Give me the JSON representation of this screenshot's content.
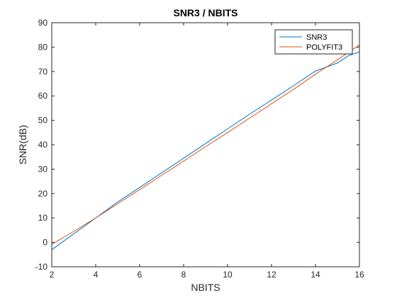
{
  "chart_data": {
    "type": "line",
    "title": "SNR3 / NBITS",
    "xlabel": "NBITS",
    "ylabel": "SNR(dB)",
    "xlim": [
      2,
      16
    ],
    "ylim": [
      -10,
      90
    ],
    "xticks": [
      2,
      4,
      6,
      8,
      10,
      12,
      14,
      16
    ],
    "yticks": [
      -10,
      0,
      10,
      20,
      30,
      40,
      50,
      60,
      70,
      80,
      90
    ],
    "grid": false,
    "legend_position": "top-right",
    "series": [
      {
        "name": "SNR3",
        "color": "#0072BD",
        "x": [
          2,
          3,
          4,
          5,
          6,
          7,
          8,
          9,
          10,
          11,
          12,
          13,
          14,
          15,
          15.5,
          16
        ],
        "y": [
          -3,
          3.5,
          10,
          16.5,
          22.5,
          28.5,
          34.5,
          40.5,
          46.5,
          52.5,
          58.3,
          64.2,
          70.2,
          73.5,
          76.5,
          78
        ]
      },
      {
        "name": "POLYFIT3",
        "color": "#D95319",
        "x": [
          2,
          3,
          4,
          5,
          6,
          7,
          8,
          9,
          10,
          11,
          12,
          13,
          14,
          15,
          16
        ],
        "y": [
          -0.8,
          4.5,
          10.0,
          15.8,
          21.6,
          27.5,
          33.3,
          39.2,
          45.0,
          50.9,
          56.8,
          62.7,
          68.9,
          74.8,
          80.9
        ]
      }
    ]
  }
}
